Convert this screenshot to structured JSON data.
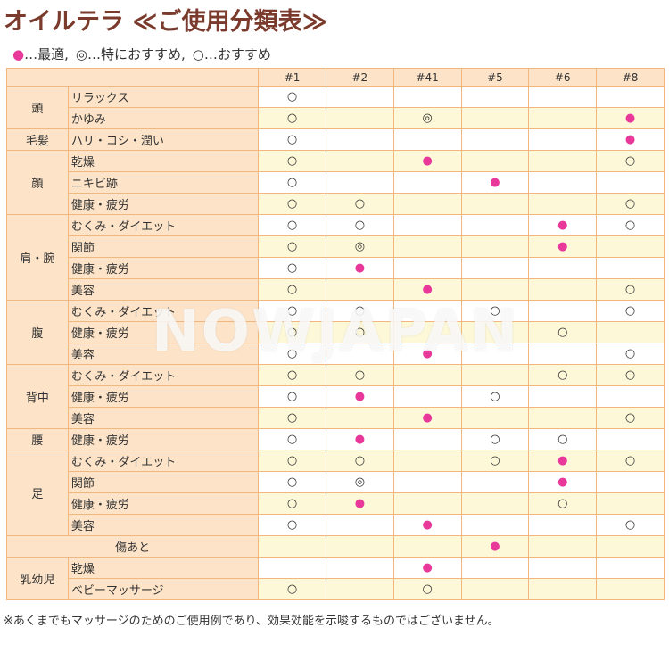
{
  "header": {
    "title": "オイルテラ ≪ご使用分類表≫",
    "legend": [
      {
        "symbol": "●",
        "text": "…最適,"
      },
      {
        "symbol": "◎",
        "text": "…特におすすめ,"
      },
      {
        "symbol": "○",
        "text": "…おすすめ"
      }
    ]
  },
  "table": {
    "columns": [
      "#1",
      "#2",
      "#41",
      "#5",
      "#6",
      "#8"
    ],
    "groups": [
      {
        "label": "頭",
        "rows": [
          {
            "item": "リラックス",
            "marks": [
              "○",
              null,
              null,
              null,
              null,
              null
            ]
          },
          {
            "item": "かゆみ",
            "marks": [
              "○",
              null,
              "◎",
              null,
              null,
              "●"
            ]
          }
        ]
      },
      {
        "label": "毛髪",
        "rows": [
          {
            "item": "ハリ・コシ・潤い",
            "marks": [
              "○",
              null,
              null,
              null,
              null,
              "●"
            ]
          }
        ]
      },
      {
        "label": "顔",
        "rows": [
          {
            "item": "乾燥",
            "marks": [
              "○",
              null,
              "●",
              null,
              null,
              "○"
            ]
          },
          {
            "item": "ニキビ跡",
            "marks": [
              "○",
              null,
              null,
              "●",
              null,
              null
            ]
          },
          {
            "item": "健康・疲労",
            "marks": [
              "○",
              "○",
              null,
              null,
              null,
              "○"
            ]
          }
        ]
      },
      {
        "label": "肩・腕",
        "rows": [
          {
            "item": "むくみ・ダイエット",
            "marks": [
              "○",
              "○",
              null,
              null,
              "●",
              "○"
            ]
          },
          {
            "item": "関節",
            "marks": [
              "○",
              "◎",
              null,
              null,
              "●",
              null
            ]
          },
          {
            "item": "健康・疲労",
            "marks": [
              "○",
              "●",
              null,
              null,
              null,
              null
            ]
          },
          {
            "item": "美容",
            "marks": [
              "○",
              null,
              "●",
              null,
              null,
              "○"
            ]
          }
        ]
      },
      {
        "label": "腹",
        "rows": [
          {
            "item": "むくみ・ダイエット",
            "marks": [
              "○",
              "○",
              null,
              "○",
              null,
              "○"
            ]
          },
          {
            "item": "健康・疲労",
            "marks": [
              "○",
              "○",
              null,
              null,
              "○",
              null
            ]
          },
          {
            "item": "美容",
            "marks": [
              "○",
              null,
              "●",
              null,
              null,
              "○"
            ]
          }
        ]
      },
      {
        "label": "背中",
        "rows": [
          {
            "item": "むくみ・ダイエット",
            "marks": [
              "○",
              "○",
              null,
              null,
              "○",
              "○"
            ]
          },
          {
            "item": "健康・疲労",
            "marks": [
              "○",
              "●",
              null,
              "○",
              null,
              null
            ]
          },
          {
            "item": "美容",
            "marks": [
              "○",
              null,
              "●",
              null,
              null,
              "○"
            ]
          }
        ]
      },
      {
        "label": "腰",
        "rows": [
          {
            "item": "健康・疲労",
            "marks": [
              "○",
              "●",
              null,
              "○",
              "○",
              null
            ]
          }
        ]
      },
      {
        "label": "足",
        "rows": [
          {
            "item": "むくみ・ダイエット",
            "marks": [
              "○",
              "○",
              null,
              "○",
              "●",
              "○"
            ]
          },
          {
            "item": "関節",
            "marks": [
              "○",
              "◎",
              null,
              null,
              "●",
              null
            ]
          },
          {
            "item": "健康・疲労",
            "marks": [
              "○",
              "●",
              null,
              null,
              "○",
              null
            ]
          },
          {
            "item": "美容",
            "marks": [
              "○",
              null,
              "●",
              null,
              null,
              "○"
            ]
          }
        ]
      },
      {
        "label": "傷あと",
        "rows": [
          {
            "marks": [
              null,
              null,
              null,
              "●",
              null,
              null
            ]
          }
        ]
      },
      {
        "label": "乳幼児",
        "rows": [
          {
            "item": "乾燥",
            "marks": [
              null,
              null,
              "●",
              null,
              null,
              null
            ]
          },
          {
            "item": "ベビーマッサージ",
            "marks": [
              "○",
              null,
              "○",
              null,
              null,
              null
            ]
          }
        ]
      }
    ]
  },
  "watermark": "NOWJAPAN",
  "footer": "※あくまでもマッサージのためのご使用例であり、効果効能を示唆するものではございません。"
}
